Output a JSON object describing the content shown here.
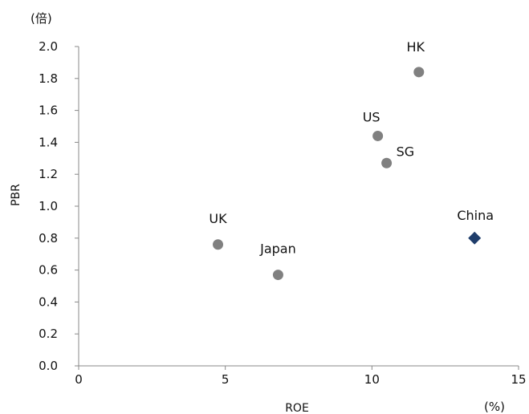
{
  "chart_data": {
    "type": "scatter",
    "title": "",
    "xlabel": "ROE",
    "ylabel": "PBR",
    "x_unit": "(%)",
    "y_unit": "(倍)",
    "xlim": [
      0,
      15
    ],
    "ylim": [
      0,
      2.0
    ],
    "xticks": [
      0,
      5,
      10,
      15
    ],
    "yticks": [
      "0.0",
      "0.2",
      "0.4",
      "0.6",
      "0.8",
      "1.0",
      "1.2",
      "1.4",
      "1.6",
      "1.8",
      "2.0"
    ],
    "grid": false,
    "legend": "none",
    "points": [
      {
        "label": "HK",
        "x": 11.6,
        "y": 1.84,
        "marker": "circle",
        "color": "#808080"
      },
      {
        "label": "US",
        "x": 10.2,
        "y": 1.44,
        "marker": "circle",
        "color": "#808080"
      },
      {
        "label": "SG",
        "x": 10.5,
        "y": 1.27,
        "marker": "circle",
        "color": "#808080"
      },
      {
        "label": "UK",
        "x": 4.75,
        "y": 0.76,
        "marker": "circle",
        "color": "#808080"
      },
      {
        "label": "Japan",
        "x": 6.8,
        "y": 0.57,
        "marker": "circle",
        "color": "#808080"
      },
      {
        "label": "China",
        "x": 13.5,
        "y": 0.8,
        "marker": "diamond",
        "color": "#1f3d6b"
      }
    ]
  }
}
